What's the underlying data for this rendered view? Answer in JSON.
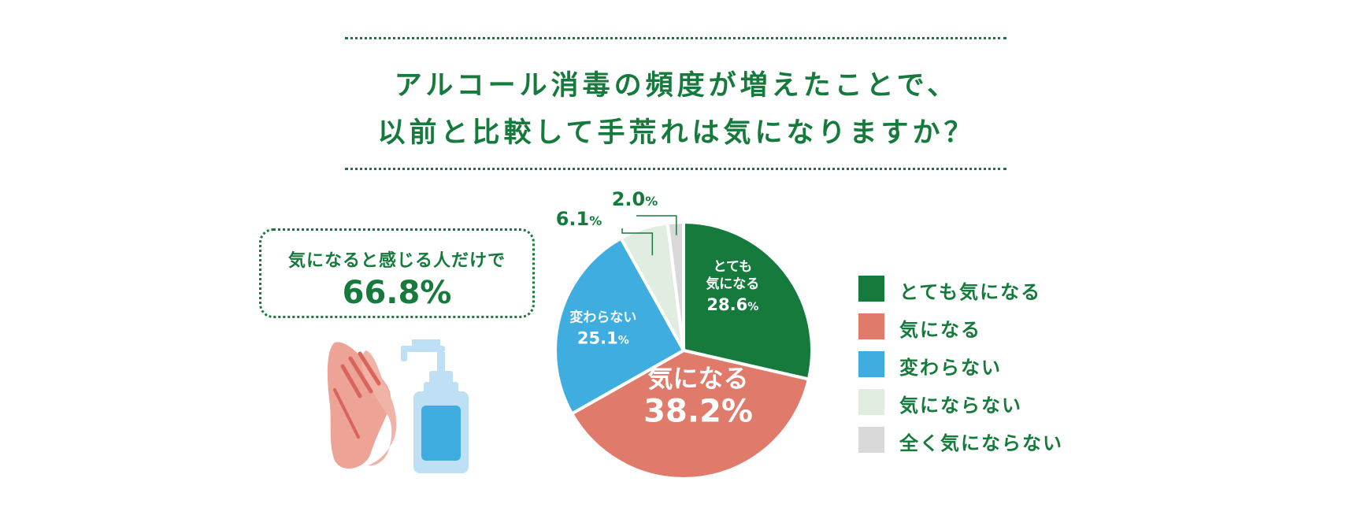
{
  "title": {
    "line1": "アルコール消毒の頻度が増えたことで、",
    "line2": "以前と比較して手荒れは気になりますか？"
  },
  "callout": {
    "label": "気になると感じる人だけで",
    "value": "66.8%"
  },
  "colors": {
    "accent": "#157a3c",
    "very_concerned": "#157a3c",
    "concerned": "#e07a6a",
    "unchanged": "#40ade0",
    "not_concerned": "#e1ede1",
    "not_at_all": "#d9d9d9"
  },
  "illustration": {
    "icons": [
      "hands-icon",
      "sanitizer-bottle-icon"
    ]
  },
  "chart_data": {
    "type": "pie",
    "start": "12 o'clock",
    "direction": "clockwise",
    "slices": [
      {
        "label": "とても気になる",
        "slice_label_lines": [
          "とても",
          "気になる"
        ],
        "value": 28.6,
        "value_text": "28.6",
        "unit": "%",
        "color": "#157a3c"
      },
      {
        "label": "気になる",
        "slice_label_lines": [
          "気になる"
        ],
        "value": 38.2,
        "value_text": "38.2",
        "unit": "%",
        "color": "#e07a6a"
      },
      {
        "label": "変わらない",
        "slice_label_lines": [
          "変わらない"
        ],
        "value": 25.1,
        "value_text": "25.1",
        "unit": "%",
        "color": "#40ade0"
      },
      {
        "label": "気にならない",
        "slice_label_lines": [],
        "value": 6.1,
        "value_text": "6.1",
        "unit": "%",
        "color": "#e1ede1"
      },
      {
        "label": "全く気にならない",
        "slice_label_lines": [],
        "value": 2.0,
        "value_text": "2.0",
        "unit": "%",
        "color": "#d9d9d9"
      }
    ],
    "legend_position": "right"
  }
}
